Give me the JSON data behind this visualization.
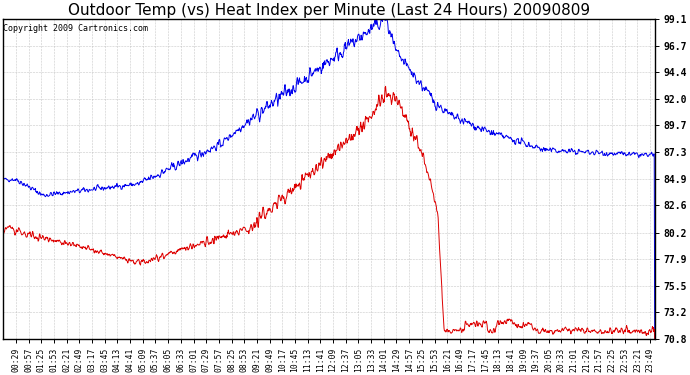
{
  "title": "Outdoor Temp (vs) Heat Index per Minute (Last 24 Hours) 20090809",
  "copyright_text": "Copyright 2009 Cartronics.com",
  "yticks": [
    70.8,
    73.2,
    75.5,
    77.9,
    80.2,
    82.6,
    84.9,
    87.3,
    89.7,
    92.0,
    94.4,
    96.7,
    99.1
  ],
  "ymin": 70.8,
  "ymax": 99.1,
  "blue_color": "#0000ee",
  "red_color": "#dd0000",
  "grid_color": "#bbbbbb",
  "bg_color": "#ffffff",
  "title_fontsize": 11,
  "n_points": 1440,
  "xtick_start": 29,
  "xtick_step": 28
}
